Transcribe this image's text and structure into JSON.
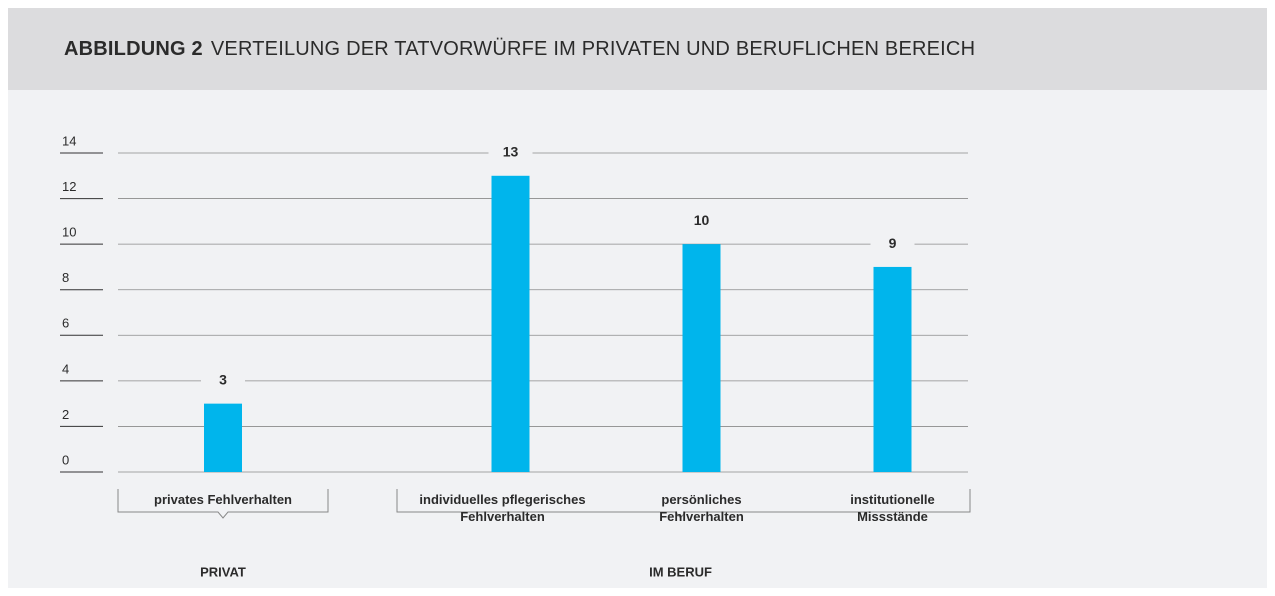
{
  "chart_data": {
    "type": "bar",
    "label": "ABBILDUNG 2",
    "title": "VERTEILUNG DER TATVORWÜRFE IM PRIVATEN UND BERUFLICHEN BEREICH",
    "groups": [
      {
        "name": "PRIVAT",
        "categories": [
          "privates Fehlverhalten"
        ],
        "values": [
          3
        ]
      },
      {
        "name": "IM BERUF",
        "categories": [
          "individuelles pflegerisches\nFehlverhalten",
          "persönliches\nFehlverhalten",
          "institutionelle\nMissstände"
        ],
        "values": [
          13,
          10,
          9
        ]
      }
    ],
    "color": "#00b5ec",
    "ylim": [
      0,
      14
    ],
    "yticks": [
      0,
      2,
      4,
      6,
      8,
      10,
      12,
      14
    ],
    "grid": true
  }
}
